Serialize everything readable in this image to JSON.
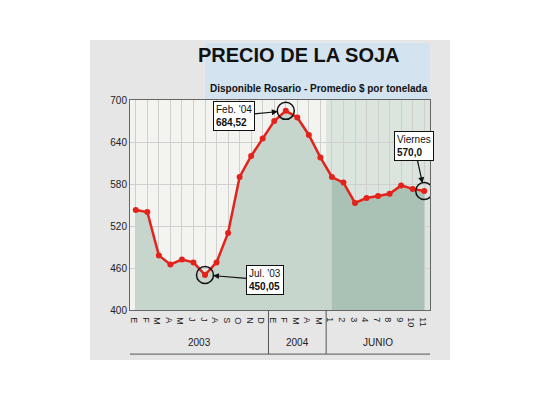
{
  "chart_data": {
    "type": "line",
    "title": "PRECIO DE LA SOJA",
    "subtitle": "Disponible Rosario - Promedio $ por tonelada",
    "categories": [
      "E",
      "F",
      "M",
      "A",
      "M",
      "J",
      "J",
      "A",
      "S",
      "O",
      "N",
      "D",
      "E",
      "F",
      "M",
      "A",
      "M",
      "1",
      "2",
      "3",
      "4",
      "7",
      "8",
      "9",
      "10",
      "11"
    ],
    "values": [
      543,
      540,
      478,
      465,
      472,
      468,
      450.05,
      468,
      510,
      590,
      620,
      645,
      670,
      684.52,
      675,
      650,
      618,
      590,
      582,
      553,
      560,
      563,
      566,
      578,
      573,
      570
    ],
    "groups": [
      {
        "label": "2003",
        "count": 12
      },
      {
        "label": "2004",
        "count": 5
      },
      {
        "label": "JUNIO",
        "count": 9
      }
    ],
    "ylim": [
      400,
      700
    ],
    "yticks": [
      400,
      460,
      520,
      580,
      640,
      700
    ],
    "grid": true,
    "color": "#e3231b",
    "marker": "circle",
    "annotations": [
      {
        "category_index": 13,
        "value": 684.52,
        "label": "Feb. '04",
        "value_label": "684,52"
      },
      {
        "category_index": 6,
        "value": 450.05,
        "label": "Jul. '03",
        "value_label": "450,05"
      },
      {
        "category_index": 25,
        "value": 570,
        "label": "Viernes",
        "value_label": "570,0"
      }
    ]
  }
}
